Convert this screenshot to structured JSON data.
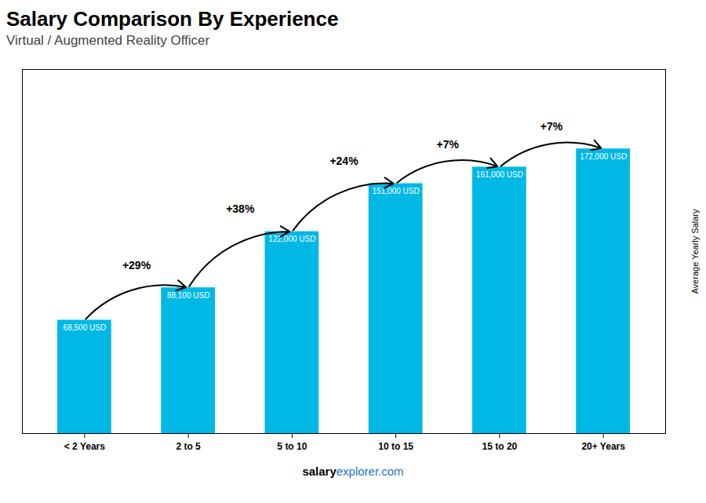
{
  "chart_data": {
    "type": "bar",
    "title": "Salary Comparison By Experience",
    "subtitle": "Virtual / Augmented Reality Officer",
    "categories": [
      "< 2 Years",
      "2 to 5",
      "5 to 10",
      "10 to 15",
      "15 to 20",
      "20+ Years"
    ],
    "values": [
      68500,
      88100,
      122000,
      151000,
      161000,
      172000
    ],
    "value_labels": [
      "68,500 USD",
      "88,100 USD",
      "122,000 USD",
      "151,000 USD",
      "161,000 USD",
      "172,000 USD"
    ],
    "data_labels": true,
    "annotations": [
      "+29%",
      "+38%",
      "+24%",
      "+7%",
      "+7%"
    ],
    "ylabel": "Average Yearly Salary",
    "footer": [
      "salary",
      "explorer.com"
    ],
    "color": "#00b8e6",
    "ylim": [
      0,
      220000
    ],
    "tick_labels": "x",
    "grid": false
  }
}
